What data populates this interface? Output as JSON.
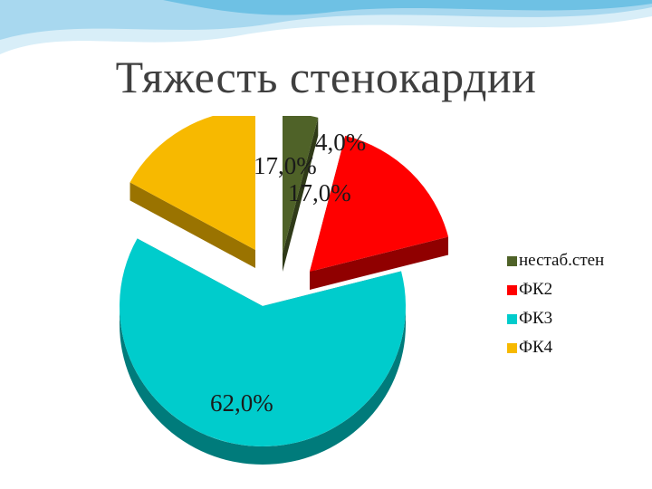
{
  "slide": {
    "title": "Тяжесть стенокардии"
  },
  "colors": {
    "wave_light": "#d8eef8",
    "wave_mid": "#9fd3ec",
    "wave_dark": "#5fb8e0"
  },
  "chart_data": {
    "type": "pie",
    "style": "3d-exploded",
    "legend_position": "right",
    "labels": [
      "нестаб.стен",
      "ФК2",
      "ФК3",
      "ФК4"
    ],
    "values": [
      4.0,
      17.0,
      62.0,
      17.0
    ],
    "value_labels": [
      "4,0%",
      "17,0%",
      "62,0%",
      "17,0%"
    ],
    "colors": [
      "#4f6228",
      "#ff0000",
      "#00cccc",
      "#f7b900"
    ],
    "side_colors": [
      "#2f3a18",
      "#900000",
      "#007b7b",
      "#9a7300"
    ]
  }
}
